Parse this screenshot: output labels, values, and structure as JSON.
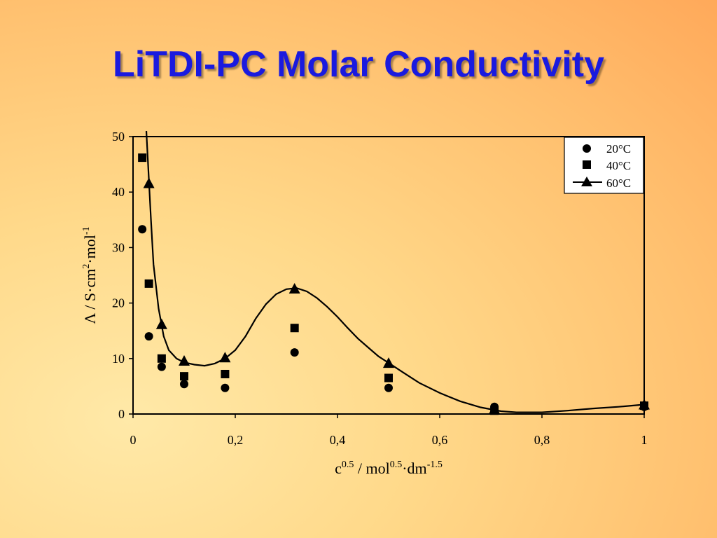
{
  "slide": {
    "title": "LiTDI-PC Molar Conductivity"
  },
  "chart_data": {
    "type": "scatter",
    "xlim": [
      0,
      1
    ],
    "ylim": [
      0,
      50
    ],
    "x_ticks": [
      0,
      0.2,
      0.4,
      0.6,
      0.8,
      1
    ],
    "x_tick_labels": [
      "0",
      "0,2",
      "0,4",
      "0,6",
      "0,8",
      "1"
    ],
    "y_ticks": [
      0,
      10,
      20,
      30,
      40,
      50
    ],
    "y_tick_labels": [
      "0",
      "10",
      "20",
      "30",
      "40",
      "50"
    ],
    "xlabel": {
      "base": "c",
      "sup1": "0.5",
      "mid": " / mol",
      "sup2": "0.5",
      "mid2": "·dm",
      "sup3": "-1.5"
    },
    "ylabel": {
      "base": "Λ / S·cm",
      "sup1": "2",
      "mid": "·mol",
      "sup2": "-1"
    },
    "grid": false,
    "legend": "top-right",
    "series": [
      {
        "name": "20°C",
        "marker": "circle",
        "points": [
          [
            0.018,
            33.3
          ],
          [
            0.031,
            14.0
          ],
          [
            0.056,
            8.5
          ],
          [
            0.1,
            5.4
          ],
          [
            0.18,
            4.7
          ],
          [
            0.316,
            11.1
          ],
          [
            0.5,
            4.7
          ],
          [
            0.707,
            1.3
          ],
          [
            1.0,
            1.3
          ]
        ]
      },
      {
        "name": "40°C",
        "marker": "square",
        "points": [
          [
            0.018,
            46.2
          ],
          [
            0.031,
            23.5
          ],
          [
            0.056,
            10.0
          ],
          [
            0.1,
            6.8
          ],
          [
            0.18,
            7.2
          ],
          [
            0.316,
            15.5
          ],
          [
            0.5,
            6.5
          ],
          [
            0.707,
            0.6
          ],
          [
            1.0,
            1.5
          ]
        ]
      },
      {
        "name": "60°C",
        "marker": "triangle",
        "line": true,
        "points": [
          [
            0.031,
            41.6
          ],
          [
            0.056,
            16.2
          ],
          [
            0.1,
            9.6
          ],
          [
            0.18,
            10.2
          ],
          [
            0.316,
            22.6
          ],
          [
            0.5,
            9.2
          ],
          [
            0.707,
            0.9
          ],
          [
            1.0,
            1.7
          ]
        ],
        "curve": [
          [
            0.026,
            51
          ],
          [
            0.03,
            44
          ],
          [
            0.035,
            35
          ],
          [
            0.04,
            27
          ],
          [
            0.05,
            19
          ],
          [
            0.06,
            14
          ],
          [
            0.07,
            11.5
          ],
          [
            0.085,
            10
          ],
          [
            0.1,
            9.3
          ],
          [
            0.12,
            8.9
          ],
          [
            0.14,
            8.7
          ],
          [
            0.16,
            9.1
          ],
          [
            0.18,
            10.0
          ],
          [
            0.2,
            11.5
          ],
          [
            0.22,
            14.0
          ],
          [
            0.24,
            17.2
          ],
          [
            0.26,
            19.8
          ],
          [
            0.28,
            21.6
          ],
          [
            0.3,
            22.5
          ],
          [
            0.32,
            22.7
          ],
          [
            0.34,
            22.1
          ],
          [
            0.36,
            20.9
          ],
          [
            0.38,
            19.3
          ],
          [
            0.4,
            17.5
          ],
          [
            0.42,
            15.5
          ],
          [
            0.44,
            13.6
          ],
          [
            0.46,
            12.0
          ],
          [
            0.48,
            10.4
          ],
          [
            0.5,
            9.2
          ],
          [
            0.53,
            7.4
          ],
          [
            0.56,
            5.6
          ],
          [
            0.6,
            3.8
          ],
          [
            0.64,
            2.3
          ],
          [
            0.68,
            1.2
          ],
          [
            0.72,
            0.5
          ],
          [
            0.75,
            0.3
          ],
          [
            0.8,
            0.3
          ],
          [
            0.85,
            0.6
          ],
          [
            0.9,
            1.0
          ],
          [
            0.95,
            1.3
          ],
          [
            1.0,
            1.7
          ]
        ]
      }
    ]
  }
}
